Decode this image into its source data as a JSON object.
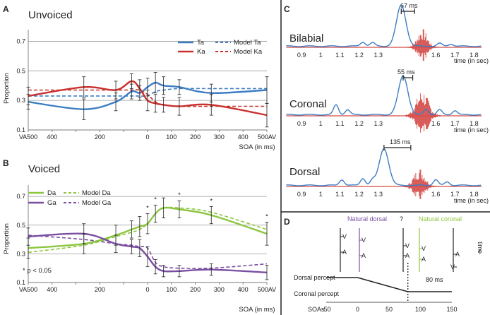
{
  "colors": {
    "ta": "#3d7dc4",
    "ka": "#c9302c",
    "da": "#8cc63f",
    "ga": "#7a4fa2",
    "wave": "#d44a47",
    "env": "#3d7dc4",
    "grid": "#9a9a9a"
  },
  "panel_a": {
    "label": "A",
    "title": "Unvoiced",
    "ylabel": "Proportion",
    "xlabel": "SOA (in ms)",
    "legend": [
      "Ta",
      "Ka",
      "Model Ta",
      "Model Ka"
    ]
  },
  "panel_b": {
    "label": "B",
    "title": "Voiced",
    "ylabel": "Proportion",
    "xlabel": "SOA (in ms)",
    "legend": [
      "Da",
      "Ga",
      "Model Da",
      "Model Ga"
    ],
    "note": "* p < 0.05"
  },
  "panel_c": {
    "label": "C",
    "rows": [
      {
        "name": "Bilabial",
        "lag": "67 ms"
      },
      {
        "name": "Coronal",
        "lag": "55 ms"
      },
      {
        "name": "Dorsal",
        "lag": "135 ms"
      }
    ],
    "axis_label": "time (in sec)"
  },
  "panel_d": {
    "label": "D",
    "natural_dorsal": "Natural dorsal",
    "natural_coronal": "Natural coronal",
    "question": "?",
    "time_label": "time",
    "time_arrow": "<-",
    "v_label": "V",
    "a_label": "A",
    "dorsal_percept": "Dorsal percept",
    "coronal_percept": "Coronal percept",
    "lag_label": "80 ms",
    "soa_label": "SOAs"
  },
  "chart_data": [
    {
      "id": "A",
      "type": "line",
      "title": "Unvoiced",
      "xlabel": "SOA (in ms)",
      "ylabel": "Proportion",
      "xlim": [
        -500,
        500
      ],
      "ylim": [
        0.1,
        0.75
      ],
      "yticks": [
        0.1,
        0.3,
        0.5,
        0.7
      ],
      "ytick_labels": [
        "0.1",
        "0.3",
        "0.5",
        "0.7"
      ],
      "xticks": [
        -500,
        -400,
        -300,
        -200,
        -100,
        0,
        100,
        200,
        300,
        400,
        500
      ],
      "xtick_labels": [
        "VA500",
        "400",
        "",
        "200",
        "",
        "0",
        "100",
        "200",
        "300",
        "400",
        "500AV"
      ],
      "grid": true,
      "x": [
        -500,
        -267,
        -133,
        -67,
        -33,
        0,
        33,
        67,
        133,
        267,
        500
      ],
      "series": [
        {
          "name": "Ta",
          "style": "solid",
          "color": "#3d7dc4",
          "values": [
            0.29,
            0.24,
            0.29,
            0.36,
            0.35,
            0.39,
            0.42,
            0.4,
            0.39,
            0.35,
            0.37
          ],
          "errors": [
            0.05,
            0.07,
            0.06,
            0.05,
            0.05,
            0.06,
            0.07,
            0.06,
            0.05,
            0.06,
            0.09
          ]
        },
        {
          "name": "Ka",
          "style": "solid",
          "color": "#c9302c",
          "values": [
            0.33,
            0.39,
            0.37,
            0.43,
            0.38,
            0.3,
            0.28,
            0.27,
            0.26,
            0.27,
            0.2
          ],
          "errors": [
            0.06,
            0.07,
            0.06,
            0.05,
            0.06,
            0.07,
            0.06,
            0.05,
            0.06,
            0.07,
            0.08
          ]
        },
        {
          "name": "Model Ta",
          "style": "dashed",
          "color": "#3d7dc4",
          "values": [
            0.33,
            0.33,
            0.33,
            0.33,
            0.33,
            0.33,
            0.36,
            0.37,
            0.38,
            0.38,
            0.38
          ]
        },
        {
          "name": "Model Ka",
          "style": "dashed",
          "color": "#c9302c",
          "values": [
            0.37,
            0.37,
            0.37,
            0.37,
            0.37,
            0.34,
            0.29,
            0.27,
            0.26,
            0.26,
            0.26
          ]
        }
      ]
    },
    {
      "id": "B",
      "type": "line",
      "title": "Voiced",
      "xlabel": "SOA (in ms)",
      "ylabel": "Proportion",
      "xlim": [
        -500,
        500
      ],
      "ylim": [
        0.1,
        0.75
      ],
      "yticks": [
        0.1,
        0.3,
        0.5,
        0.7
      ],
      "ytick_labels": [
        "0.1",
        "0.3",
        "0.5",
        "0.7"
      ],
      "xticks": [
        -500,
        -400,
        -300,
        -200,
        -100,
        0,
        100,
        200,
        300,
        400,
        500
      ],
      "xtick_labels": [
        "VA500",
        "400",
        "",
        "200",
        "",
        "0",
        "100",
        "200",
        "300",
        "400",
        "500AV"
      ],
      "grid": true,
      "significance_x": [
        0,
        33,
        133,
        267,
        500
      ],
      "x": [
        -500,
        -267,
        -133,
        -67,
        -33,
        0,
        33,
        67,
        133,
        267,
        500
      ],
      "series": [
        {
          "name": "Da",
          "style": "solid",
          "color": "#8cc63f",
          "values": [
            0.34,
            0.37,
            0.43,
            0.47,
            0.49,
            0.51,
            0.58,
            0.62,
            0.61,
            0.57,
            0.44
          ],
          "errors": [
            0.07,
            0.07,
            0.07,
            0.06,
            0.07,
            0.07,
            0.06,
            0.07,
            0.06,
            0.06,
            0.08
          ]
        },
        {
          "name": "Ga",
          "style": "solid",
          "color": "#7a4fa2",
          "values": [
            0.42,
            0.44,
            0.37,
            0.35,
            0.34,
            0.28,
            0.21,
            0.18,
            0.18,
            0.19,
            0.17
          ],
          "errors": [
            0.06,
            0.07,
            0.06,
            0.05,
            0.06,
            0.07,
            0.05,
            0.04,
            0.04,
            0.04,
            0.05
          ]
        },
        {
          "name": "Model Da",
          "style": "dashed",
          "color": "#8cc63f",
          "values": [
            0.31,
            0.36,
            0.42,
            0.45,
            0.47,
            0.51,
            0.58,
            0.62,
            0.62,
            0.59,
            0.47
          ]
        },
        {
          "name": "Model Ga",
          "style": "dashed",
          "color": "#7a4fa2",
          "values": [
            0.43,
            0.4,
            0.37,
            0.36,
            0.35,
            0.34,
            0.24,
            0.21,
            0.2,
            0.2,
            0.23
          ]
        }
      ]
    },
    {
      "id": "C",
      "type": "line",
      "xlabel": "time (in sec)",
      "xlim": [
        0.8,
        1.85
      ],
      "xticks": [
        0.9,
        1.0,
        1.1,
        1.2,
        1.3,
        1.6,
        1.7,
        1.8
      ],
      "xtick_labels": [
        "0.9",
        "1",
        "1.1",
        "1.2",
        "1.3",
        "1.6",
        "1.7",
        "1.8"
      ],
      "rows": [
        {
          "name": "Bilabial",
          "lag_ms": 67,
          "envelope_peak_s": 1.42,
          "audio_onset_s": 1.49,
          "audio_end_s": 1.57
        },
        {
          "name": "Coronal",
          "lag_ms": 55,
          "envelope_peak_s": 1.43,
          "audio_onset_s": 1.48,
          "audio_end_s": 1.58
        },
        {
          "name": "Dorsal",
          "lag_ms": 135,
          "envelope_peak_s": 1.33,
          "audio_onset_s": 1.47,
          "audio_end_s": 1.56
        }
      ]
    },
    {
      "id": "D",
      "type": "line",
      "xlabel": "SOAs",
      "xlim": [
        -50,
        150
      ],
      "xticks": [
        -50,
        0,
        50,
        100,
        150
      ],
      "xtick_labels": [
        "-50",
        "0",
        "50",
        "100",
        "150"
      ],
      "x": [
        -50,
        0,
        80,
        150
      ],
      "values": [
        1,
        1,
        0,
        0
      ],
      "crossover_ms": 80,
      "levels": [
        "Dorsal percept",
        "Coronal percept"
      ]
    }
  ]
}
